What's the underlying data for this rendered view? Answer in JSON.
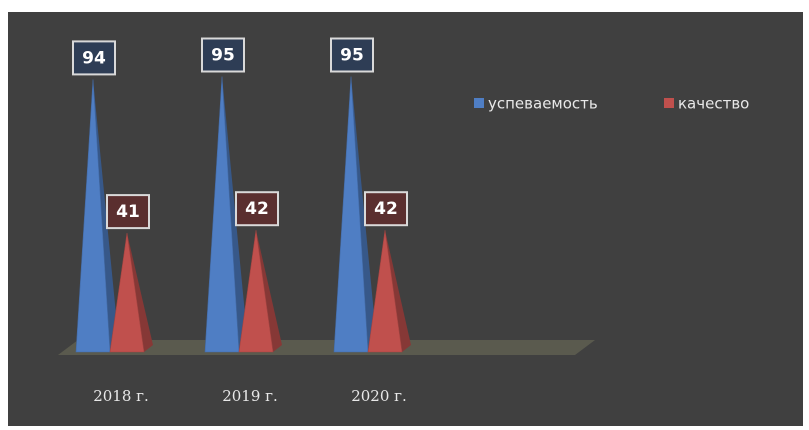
{
  "chart_data": {
    "type": "pyramid",
    "categories": [
      "2018 г.",
      "2019 г.",
      "2020 г."
    ],
    "series": [
      {
        "name": "успеваемость",
        "color": "#4f7ec4",
        "values": [
          94,
          95,
          95
        ]
      },
      {
        "name": "качество",
        "color": "#c0504d",
        "values": [
          41,
          42,
          42
        ]
      }
    ]
  }
}
